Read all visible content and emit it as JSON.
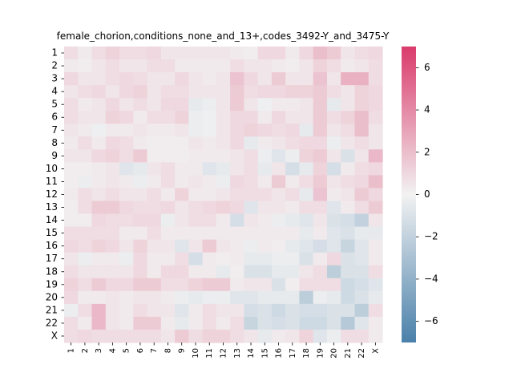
{
  "chart_data": {
    "type": "heatmap",
    "title": "female_chorion,conditions_none_and_13+,codes_3492-Y_and_3475-Y",
    "xlabel": "",
    "ylabel": "",
    "x_categories": [
      "1",
      "2",
      "3",
      "4",
      "5",
      "6",
      "7",
      "8",
      "9",
      "10",
      "11",
      "12",
      "13",
      "14",
      "15",
      "16",
      "17",
      "18",
      "19",
      "20",
      "21",
      "22",
      "X"
    ],
    "y_categories": [
      "1",
      "2",
      "3",
      "4",
      "5",
      "6",
      "7",
      "8",
      "9",
      "10",
      "11",
      "12",
      "13",
      "14",
      "15",
      "16",
      "17",
      "18",
      "19",
      "20",
      "21",
      "22",
      "X"
    ],
    "colorbar": {
      "vmin": -7,
      "vmax": 7,
      "ticks": [
        -6,
        -4,
        -2,
        0,
        2,
        4,
        6
      ],
      "tick_labels": [
        "−6",
        "−4",
        "−2",
        "0",
        "2",
        "4",
        "6"
      ],
      "colors": {
        "low": "#4a80aa",
        "mid": "#f2f2f2",
        "high": "#da3b6c"
      }
    },
    "values": [
      [
        0.8,
        0.3,
        0.8,
        1.2,
        0.8,
        0.8,
        1.0,
        0.5,
        0.5,
        0.5,
        0.5,
        0.5,
        0.3,
        0.2,
        1.0,
        1.0,
        0.3,
        1.0,
        2.0,
        1.5,
        0.5,
        0.8,
        1.0
      ],
      [
        0.3,
        0.2,
        0.5,
        0.8,
        0.5,
        0.5,
        0.8,
        0.8,
        0.3,
        0.3,
        0.3,
        0.3,
        0.8,
        0.5,
        0.5,
        0.3,
        0.2,
        0.5,
        1.2,
        0.8,
        0.3,
        0.5,
        0.8
      ],
      [
        1.0,
        0.5,
        0.5,
        0.8,
        1.0,
        0.8,
        0.5,
        0.5,
        1.0,
        0.5,
        0.3,
        0.5,
        1.8,
        1.0,
        0.5,
        1.5,
        0.5,
        0.5,
        1.8,
        0.5,
        2.5,
        2.5,
        0.8
      ],
      [
        0.5,
        0.8,
        1.0,
        0.5,
        1.0,
        1.2,
        0.5,
        0.8,
        0.8,
        0.5,
        0.5,
        0.5,
        1.5,
        0.8,
        1.0,
        1.0,
        1.2,
        1.2,
        1.5,
        0.8,
        0.5,
        1.2,
        1.0
      ],
      [
        0.8,
        0.3,
        0.5,
        1.0,
        0.5,
        0.8,
        0.5,
        1.0,
        1.0,
        -0.5,
        -0.3,
        0.5,
        1.5,
        0.5,
        -0.2,
        0.3,
        0.3,
        0.5,
        1.5,
        -0.5,
        0.5,
        1.2,
        1.0
      ],
      [
        0.8,
        0.5,
        0.5,
        1.2,
        1.0,
        0.3,
        0.8,
        0.8,
        1.2,
        -0.3,
        -0.2,
        0.5,
        1.0,
        1.0,
        0.3,
        1.0,
        0.5,
        0.5,
        1.5,
        0.8,
        1.2,
        2.0,
        0.8
      ],
      [
        0.5,
        0.3,
        -0.2,
        0.3,
        0.3,
        0.5,
        0.3,
        0.3,
        0.5,
        -0.3,
        -0.2,
        0.5,
        1.0,
        1.2,
        1.0,
        0.8,
        1.0,
        -0.5,
        1.5,
        0.5,
        0.8,
        2.0,
        0.5
      ],
      [
        0.3,
        0.8,
        0.3,
        1.0,
        0.8,
        0.3,
        0.2,
        0.2,
        0.2,
        0.5,
        0.3,
        0.5,
        1.0,
        -0.5,
        0.3,
        0.5,
        0.8,
        1.0,
        1.0,
        -0.3,
        0.5,
        0.8,
        0.5
      ],
      [
        0.5,
        0.5,
        1.0,
        1.2,
        0.8,
        1.5,
        0.2,
        0.2,
        0.2,
        0.3,
        0.3,
        0.3,
        0.5,
        0.8,
        -0.3,
        -0.8,
        -0.3,
        1.2,
        1.5,
        0.5,
        -1.0,
        0.5,
        2.2
      ],
      [
        0.2,
        0.2,
        0.3,
        0.5,
        -0.8,
        -0.5,
        0.5,
        0.8,
        0.3,
        0.3,
        -0.8,
        -0.5,
        0.5,
        0.8,
        -0.5,
        0.5,
        -1.2,
        -0.5,
        1.2,
        -1.2,
        0.3,
        0.8,
        1.0
      ],
      [
        0.2,
        -0.3,
        0.3,
        0.5,
        0.3,
        -0.3,
        0.3,
        0.8,
        0.3,
        0.5,
        0.3,
        -0.3,
        1.0,
        0.8,
        0.3,
        1.5,
        0.3,
        0.8,
        1.5,
        0.5,
        0.8,
        1.0,
        2.0
      ],
      [
        0.3,
        0.8,
        0.5,
        0.8,
        0.5,
        0.5,
        0.8,
        0.3,
        1.2,
        0.3,
        0.3,
        0.5,
        0.8,
        0.8,
        0.8,
        0.5,
        0.8,
        -0.5,
        1.8,
        0.3,
        0.5,
        1.5,
        1.0
      ],
      [
        0.2,
        0.8,
        1.5,
        1.5,
        1.0,
        0.8,
        0.8,
        1.0,
        0.5,
        0.8,
        1.0,
        1.2,
        1.0,
        -0.8,
        0.5,
        0.5,
        0.3,
        0.8,
        0.8,
        -0.8,
        0.3,
        0.8,
        1.5
      ],
      [
        0.2,
        0.2,
        1.0,
        0.8,
        0.8,
        1.0,
        1.0,
        -0.3,
        0.5,
        0.8,
        0.8,
        0.3,
        -1.2,
        0.5,
        0.3,
        -0.3,
        -0.5,
        -0.8,
        0.5,
        -1.0,
        -1.2,
        -2.0,
        0.5
      ],
      [
        0.8,
        0.8,
        0.8,
        0.8,
        0.3,
        0.3,
        0.8,
        0.3,
        0.3,
        0.3,
        0.3,
        0.3,
        0.3,
        0.3,
        0.3,
        0.3,
        0.3,
        -0.5,
        0.3,
        -0.8,
        -1.0,
        -0.5,
        -0.5
      ],
      [
        1.0,
        0.8,
        1.2,
        1.0,
        0.5,
        1.2,
        0.5,
        0.5,
        -0.8,
        0.5,
        1.5,
        0.5,
        0.3,
        -0.3,
        0.3,
        0.2,
        -0.5,
        -0.8,
        -1.2,
        -0.8,
        -1.8,
        -0.8,
        0.3
      ],
      [
        0.5,
        -0.3,
        0.3,
        0.3,
        -0.3,
        1.0,
        0.3,
        0.3,
        0.8,
        -1.2,
        0.3,
        0.2,
        0.3,
        -0.5,
        -0.5,
        -0.3,
        -0.3,
        -1.0,
        0.3,
        1.0,
        -1.0,
        -0.8,
        0.3
      ],
      [
        0.8,
        0.5,
        0.5,
        0.5,
        0.5,
        1.0,
        0.3,
        1.0,
        1.0,
        0.3,
        0.3,
        -0.5,
        0.2,
        -1.0,
        -1.0,
        -0.5,
        -0.5,
        0.5,
        0.8,
        -2.2,
        -1.0,
        -1.0,
        0.8
      ],
      [
        1.2,
        0.8,
        1.5,
        1.0,
        1.0,
        1.5,
        1.5,
        0.8,
        0.8,
        1.2,
        1.5,
        1.5,
        0.3,
        0.5,
        0.5,
        -1.0,
        0.2,
        0.8,
        0.8,
        0.8,
        -1.5,
        -1.2,
        -0.8
      ],
      [
        1.0,
        0.3,
        0.3,
        0.5,
        0.3,
        0.5,
        0.5,
        0.3,
        -0.3,
        -0.5,
        -0.3,
        -0.3,
        -0.8,
        -0.8,
        -0.5,
        -0.5,
        -0.5,
        -2.2,
        -0.3,
        -0.5,
        -1.5,
        -1.0,
        -0.5
      ],
      [
        -0.3,
        0.8,
        2.2,
        0.5,
        0.3,
        0.8,
        0.5,
        0.5,
        -0.8,
        0.3,
        0.8,
        0.5,
        0.5,
        -1.2,
        -1.0,
        -1.5,
        -1.0,
        -1.2,
        -1.2,
        -1.0,
        -1.0,
        -2.2,
        0.8
      ],
      [
        0.8,
        0.3,
        2.2,
        0.5,
        0.3,
        1.5,
        1.5,
        0.3,
        -0.5,
        0.3,
        0.8,
        0.3,
        0.8,
        -1.8,
        -1.0,
        -1.2,
        -1.0,
        -1.5,
        -1.5,
        -1.0,
        -2.5,
        -0.8,
        0.3
      ],
      [
        0.8,
        1.0,
        0.8,
        0.8,
        0.8,
        0.8,
        0.8,
        0.5,
        1.5,
        0.8,
        1.2,
        1.2,
        0.8,
        0.5,
        -0.5,
        0.3,
        0.5,
        1.2,
        -0.8,
        -0.3,
        0.8,
        0.8,
        0.3
      ]
    ]
  }
}
